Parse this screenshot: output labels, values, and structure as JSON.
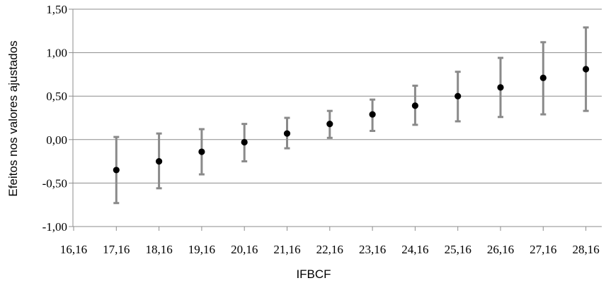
{
  "chart_data": {
    "type": "scatter",
    "xlabel": "IFBCF",
    "ylabel": "Efeitos nos valores ajustados",
    "ylim": [
      -1.0,
      1.5
    ],
    "y_ticks": [
      "-1,00",
      "-0,50",
      "0,00",
      "0,50",
      "1,00",
      "1,50"
    ],
    "y_tick_values": [
      -1.0,
      -0.5,
      0.0,
      0.5,
      1.0,
      1.5
    ],
    "categories": [
      "16,16",
      "17,16",
      "18,16",
      "19,16",
      "20,16",
      "21,16",
      "22,16",
      "23,16",
      "24,16",
      "25,16",
      "26,16",
      "27,16",
      "28,16"
    ],
    "x_values": [
      16.16,
      17.16,
      18.16,
      19.16,
      20.16,
      21.16,
      22.16,
      23.16,
      24.16,
      25.16,
      26.16,
      27.16,
      28.16
    ],
    "series": [
      {
        "x": [
          17.16,
          18.16,
          19.16,
          20.16,
          21.16,
          22.16,
          23.16,
          24.16,
          25.16,
          26.16,
          27.16,
          28.16
        ],
        "y": [
          -0.35,
          -0.25,
          -0.14,
          -0.03,
          0.07,
          0.18,
          0.29,
          0.39,
          0.5,
          0.6,
          0.71,
          0.81
        ],
        "y_low": [
          -0.73,
          -0.56,
          -0.4,
          -0.25,
          -0.1,
          0.02,
          0.1,
          0.17,
          0.21,
          0.26,
          0.29,
          0.33
        ],
        "y_high": [
          0.03,
          0.07,
          0.12,
          0.18,
          0.25,
          0.33,
          0.46,
          0.62,
          0.78,
          0.94,
          1.12,
          1.29
        ]
      }
    ],
    "grid": true,
    "colors": {
      "point": "#000000",
      "error_bar": "#8a8a8a",
      "grid": "#8c8c8c"
    }
  }
}
